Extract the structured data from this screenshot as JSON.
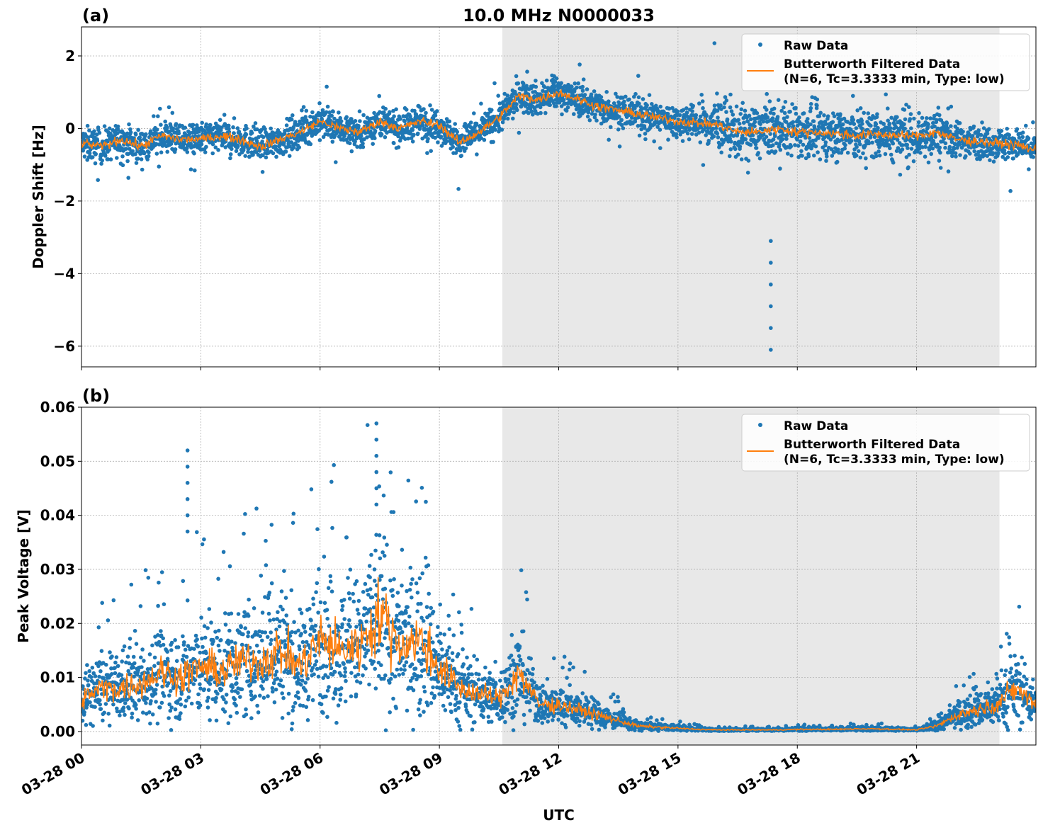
{
  "chart_data": [
    {
      "type": "scatter",
      "panel_label": "(a)",
      "title": "10.0 MHz N0000033",
      "ylabel": "Doppler Shift [Hz]",
      "xlabel": "",
      "ylim": [
        -6.57,
        2.8
      ],
      "yticks": [
        2,
        0,
        -2,
        -4,
        -6
      ],
      "ytick_labels": [
        "2",
        "0",
        "−2",
        "−4",
        "−6"
      ],
      "xlim_hours": [
        0,
        24
      ],
      "grid": true,
      "legend_placement": "top-right",
      "shaded_region_utc": [
        "03-28 10:35",
        "03-28 23:05"
      ],
      "series": [
        {
          "name": "Raw Data",
          "style": "points",
          "color": "#1f77b4"
        },
        {
          "name": "Butterworth Filtered Data\n(N=6, Tc=3.3333 min, Type: low)",
          "style": "line",
          "color": "#ff7f0e",
          "x_hours": [
            0,
            0.5,
            1,
            1.5,
            2,
            2.5,
            3,
            3.5,
            4,
            4.5,
            5,
            5.5,
            6,
            6.5,
            7,
            7.5,
            8,
            8.5,
            9,
            9.5,
            10,
            10.5,
            11,
            11.5,
            12,
            12.5,
            13,
            13.5,
            14,
            14.5,
            15,
            15.5,
            16,
            16.5,
            17,
            17.5,
            18,
            18.5,
            19,
            19.5,
            20,
            20.5,
            21,
            21.5,
            22,
            22.5,
            23,
            23.5,
            24
          ],
          "values": [
            -0.4,
            -0.5,
            -0.3,
            -0.5,
            -0.2,
            -0.3,
            -0.3,
            -0.2,
            -0.3,
            -0.5,
            -0.3,
            -0.1,
            0.2,
            0.0,
            -0.1,
            0.2,
            0.0,
            0.2,
            0.1,
            -0.4,
            -0.1,
            0.3,
            0.9,
            0.8,
            1.0,
            0.8,
            0.6,
            0.5,
            0.4,
            0.3,
            0.2,
            0.15,
            0.1,
            -0.1,
            -0.1,
            0.0,
            -0.1,
            -0.1,
            -0.15,
            -0.2,
            -0.15,
            -0.2,
            -0.2,
            -0.1,
            -0.3,
            -0.35,
            -0.4,
            -0.45,
            -0.6
          ]
        }
      ],
      "notable_outliers": [
        {
          "x": "03-28 17:20",
          "y": -6.1
        },
        {
          "x": "03-28 15:55",
          "y": 2.35
        }
      ]
    },
    {
      "type": "scatter",
      "panel_label": "(b)",
      "title": "",
      "ylabel": "Peak Voltage [V]",
      "xlabel": "UTC",
      "ylim": [
        -0.0025,
        0.06
      ],
      "yticks": [
        0.0,
        0.01,
        0.02,
        0.03,
        0.04,
        0.05,
        0.06
      ],
      "ytick_labels": [
        "0.00",
        "0.01",
        "0.02",
        "0.03",
        "0.04",
        "0.05",
        "0.06"
      ],
      "xticks_hours": [
        0,
        3,
        6,
        9,
        12,
        15,
        18,
        21
      ],
      "xtick_labels": [
        "03-28 00",
        "03-28 03",
        "03-28 06",
        "03-28 09",
        "03-28 12",
        "03-28 15",
        "03-28 18",
        "03-28 21"
      ],
      "xlim_hours": [
        0,
        24
      ],
      "grid": true,
      "legend_placement": "top-right",
      "shaded_region_utc": [
        "03-28 10:35",
        "03-28 23:05"
      ],
      "series": [
        {
          "name": "Raw Data",
          "style": "points",
          "color": "#1f77b4"
        },
        {
          "name": "Butterworth Filtered Data\n(N=6, Tc=3.3333 min, Type: low)",
          "style": "line",
          "color": "#ff7f0e",
          "x_hours": [
            0,
            0.5,
            1,
            1.5,
            2,
            2.5,
            3,
            3.5,
            4,
            4.5,
            5,
            5.5,
            6,
            6.5,
            7,
            7.5,
            8,
            8.5,
            9,
            9.5,
            10,
            10.5,
            11,
            11.5,
            12,
            12.5,
            13,
            13.5,
            14,
            14.5,
            15,
            15.5,
            16,
            16.5,
            17,
            17.5,
            18,
            18.5,
            19,
            19.5,
            20,
            20.5,
            21,
            21.5,
            22,
            22.5,
            23,
            23.5,
            24
          ],
          "values": [
            0.006,
            0.008,
            0.008,
            0.009,
            0.011,
            0.01,
            0.012,
            0.011,
            0.013,
            0.013,
            0.015,
            0.012,
            0.017,
            0.015,
            0.016,
            0.022,
            0.016,
            0.017,
            0.012,
            0.008,
            0.007,
            0.006,
            0.011,
            0.005,
            0.005,
            0.004,
            0.003,
            0.002,
            0.001,
            0.0008,
            0.0006,
            0.0004,
            0.0003,
            0.0003,
            0.0003,
            0.0003,
            0.0004,
            0.0004,
            0.0004,
            0.0005,
            0.0005,
            0.0004,
            0.0003,
            0.001,
            0.003,
            0.004,
            0.005,
            0.008,
            0.005
          ]
        }
      ],
      "notable_outliers": [
        {
          "x": "03-28 07:25",
          "y": 0.057
        },
        {
          "x": "03-28 02:40",
          "y": 0.052
        }
      ]
    }
  ],
  "colors": {
    "raw": "#1f77b4",
    "filtered": "#ff7f0e",
    "shade": "#e8e8e8",
    "grid": "#b0b0b0"
  }
}
